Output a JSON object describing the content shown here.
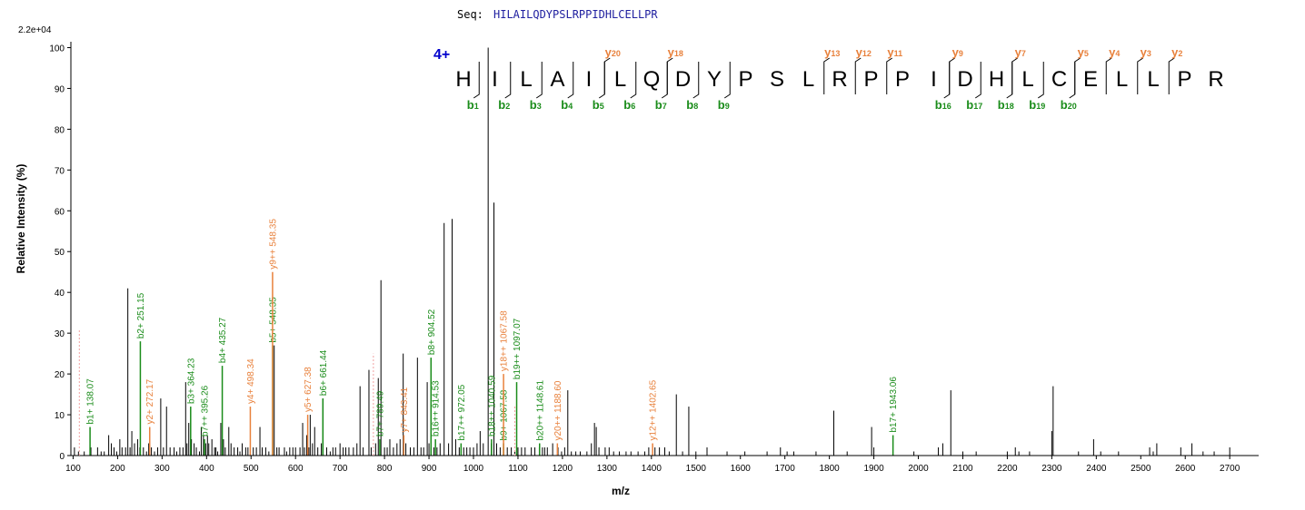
{
  "sequence_label": "Seq:",
  "sequence": "HILAILQDYPSLRPPIDHLCELLPR",
  "charge": "4+",
  "scale": "2.2e+04",
  "chart_data": {
    "type": "bar",
    "xlabel": "m/z",
    "ylabel": "Relative   Intensity (%)",
    "xlim": [
      95,
      2765
    ],
    "ylim": [
      0,
      101
    ],
    "xticks": [
      100,
      200,
      300,
      400,
      500,
      600,
      700,
      800,
      900,
      1000,
      1100,
      1200,
      1300,
      1400,
      1500,
      1600,
      1700,
      1800,
      1900,
      2000,
      2100,
      2200,
      2300,
      2400,
      2500,
      2600,
      2700
    ],
    "yticks": [
      0,
      10,
      20,
      30,
      40,
      50,
      60,
      70,
      80,
      90,
      100
    ],
    "colors": {
      "b": "#1a8c1a",
      "y": "#e8813c",
      "other": "#000000",
      "charge": "#0000cc"
    },
    "peaks": [
      [
        103,
        2
      ],
      [
        112,
        1
      ],
      [
        125,
        1
      ],
      [
        140,
        2
      ],
      [
        155,
        2
      ],
      [
        163,
        1
      ],
      [
        170,
        1
      ],
      [
        180,
        5
      ],
      [
        186,
        3
      ],
      [
        192,
        2
      ],
      [
        198,
        1
      ],
      [
        205,
        4
      ],
      [
        210,
        2
      ],
      [
        218,
        2
      ],
      [
        223,
        41
      ],
      [
        228,
        2
      ],
      [
        232,
        6
      ],
      [
        238,
        3
      ],
      [
        245,
        4
      ],
      [
        250,
        2
      ],
      [
        258,
        2
      ],
      [
        265,
        1
      ],
      [
        270,
        3
      ],
      [
        276,
        2
      ],
      [
        283,
        1
      ],
      [
        290,
        2
      ],
      [
        297,
        14
      ],
      [
        303,
        2
      ],
      [
        310,
        12
      ],
      [
        318,
        2
      ],
      [
        327,
        2
      ],
      [
        333,
        1
      ],
      [
        340,
        2
      ],
      [
        347,
        2
      ],
      [
        353,
        18
      ],
      [
        356,
        3
      ],
      [
        360,
        8
      ],
      [
        366,
        4
      ],
      [
        372,
        3
      ],
      [
        377,
        2
      ],
      [
        384,
        1
      ],
      [
        388,
        7
      ],
      [
        393,
        5
      ],
      [
        398,
        3
      ],
      [
        402,
        5
      ],
      [
        405,
        3
      ],
      [
        412,
        4
      ],
      [
        418,
        2
      ],
      [
        421,
        2
      ],
      [
        425,
        1
      ],
      [
        432,
        8
      ],
      [
        438,
        4
      ],
      [
        442,
        2
      ],
      [
        450,
        7
      ],
      [
        455,
        3
      ],
      [
        462,
        2
      ],
      [
        470,
        2
      ],
      [
        475,
        1
      ],
      [
        480,
        3
      ],
      [
        488,
        2
      ],
      [
        493,
        2
      ],
      [
        505,
        2
      ],
      [
        512,
        2
      ],
      [
        520,
        7
      ],
      [
        525,
        2
      ],
      [
        533,
        2
      ],
      [
        540,
        1
      ],
      [
        552,
        27
      ],
      [
        558,
        2
      ],
      [
        563,
        2
      ],
      [
        575,
        2
      ],
      [
        580,
        1
      ],
      [
        587,
        2
      ],
      [
        594,
        2
      ],
      [
        600,
        2
      ],
      [
        610,
        2
      ],
      [
        616,
        8
      ],
      [
        620,
        2
      ],
      [
        625,
        5
      ],
      [
        630,
        2
      ],
      [
        633,
        10
      ],
      [
        638,
        3
      ],
      [
        643,
        7
      ],
      [
        650,
        2
      ],
      [
        658,
        3
      ],
      [
        662,
        14
      ],
      [
        670,
        2
      ],
      [
        678,
        1
      ],
      [
        684,
        2
      ],
      [
        690,
        2
      ],
      [
        700,
        3
      ],
      [
        707,
        2
      ],
      [
        713,
        2
      ],
      [
        720,
        2
      ],
      [
        730,
        2
      ],
      [
        738,
        3
      ],
      [
        745,
        17
      ],
      [
        752,
        2
      ],
      [
        765,
        21
      ],
      [
        770,
        2
      ],
      [
        780,
        3
      ],
      [
        786,
        19
      ],
      [
        792,
        43
      ],
      [
        800,
        2
      ],
      [
        806,
        2
      ],
      [
        812,
        4
      ],
      [
        820,
        2
      ],
      [
        828,
        3
      ],
      [
        835,
        4
      ],
      [
        842,
        25
      ],
      [
        848,
        3
      ],
      [
        858,
        2
      ],
      [
        866,
        2
      ],
      [
        874,
        24
      ],
      [
        882,
        2
      ],
      [
        888,
        2
      ],
      [
        896,
        18
      ],
      [
        900,
        3
      ],
      [
        904,
        2
      ],
      [
        911,
        2
      ],
      [
        918,
        2
      ],
      [
        925,
        3
      ],
      [
        934,
        57
      ],
      [
        944,
        3
      ],
      [
        952,
        58
      ],
      [
        960,
        4
      ],
      [
        968,
        2
      ],
      [
        978,
        2
      ],
      [
        985,
        2
      ],
      [
        992,
        2
      ],
      [
        1000,
        2
      ],
      [
        1008,
        3
      ],
      [
        1015,
        6
      ],
      [
        1022,
        3
      ],
      [
        1033,
        100
      ],
      [
        1040,
        3
      ],
      [
        1046,
        62
      ],
      [
        1052,
        3
      ],
      [
        1060,
        2
      ],
      [
        1068,
        2
      ],
      [
        1076,
        2
      ],
      [
        1085,
        2
      ],
      [
        1093,
        1
      ],
      [
        1100,
        2
      ],
      [
        1108,
        2
      ],
      [
        1116,
        2
      ],
      [
        1130,
        2
      ],
      [
        1138,
        2
      ],
      [
        1148,
        2
      ],
      [
        1155,
        2
      ],
      [
        1160,
        2
      ],
      [
        1166,
        2
      ],
      [
        1178,
        3
      ],
      [
        1190,
        2
      ],
      [
        1198,
        1
      ],
      [
        1205,
        2
      ],
      [
        1212,
        16
      ],
      [
        1220,
        1
      ],
      [
        1230,
        1
      ],
      [
        1240,
        1
      ],
      [
        1255,
        1
      ],
      [
        1265,
        3
      ],
      [
        1272,
        8
      ],
      [
        1276,
        7
      ],
      [
        1282,
        2
      ],
      [
        1296,
        2
      ],
      [
        1305,
        2
      ],
      [
        1315,
        1
      ],
      [
        1328,
        1
      ],
      [
        1343,
        1
      ],
      [
        1354,
        1
      ],
      [
        1370,
        1
      ],
      [
        1385,
        1
      ],
      [
        1394,
        2
      ],
      [
        1408,
        2
      ],
      [
        1418,
        2
      ],
      [
        1430,
        2
      ],
      [
        1440,
        1
      ],
      [
        1456,
        15
      ],
      [
        1470,
        1
      ],
      [
        1484,
        12
      ],
      [
        1500,
        1
      ],
      [
        1525,
        2
      ],
      [
        1570,
        1
      ],
      [
        1610,
        1
      ],
      [
        1660,
        1
      ],
      [
        1690,
        2
      ],
      [
        1705,
        1
      ],
      [
        1720,
        1
      ],
      [
        1770,
        1
      ],
      [
        1810,
        11
      ],
      [
        1840,
        1
      ],
      [
        1895,
        7
      ],
      [
        1900,
        2
      ],
      [
        1990,
        1
      ],
      [
        2045,
        2
      ],
      [
        2055,
        3
      ],
      [
        2073,
        16
      ],
      [
        2100,
        1
      ],
      [
        2130,
        1
      ],
      [
        2200,
        1
      ],
      [
        2218,
        2
      ],
      [
        2226,
        1
      ],
      [
        2250,
        1
      ],
      [
        2300,
        6
      ],
      [
        2303,
        17
      ],
      [
        2360,
        1
      ],
      [
        2394,
        4
      ],
      [
        2410,
        1
      ],
      [
        2450,
        1
      ],
      [
        2520,
        2
      ],
      [
        2528,
        1
      ],
      [
        2536,
        3
      ],
      [
        2590,
        2
      ],
      [
        2615,
        3
      ],
      [
        2640,
        1
      ],
      [
        2665,
        1
      ],
      [
        2700,
        2
      ]
    ],
    "annotations": [
      {
        "mz": 138.07,
        "h": 7,
        "label": "b1+ 138.07",
        "ion": "b"
      },
      {
        "mz": 251.15,
        "h": 28,
        "label": "b2+ 251.15",
        "ion": "b"
      },
      {
        "mz": 272.17,
        "h": 7,
        "label": "y2+ 272.17",
        "ion": "y"
      },
      {
        "mz": 364.23,
        "h": 12,
        "label": "b3+ 364.23",
        "ion": "b"
      },
      {
        "mz": 395.26,
        "h": 4,
        "label": "b7++ 395.26",
        "ion": "b"
      },
      {
        "mz": 435.27,
        "h": 22,
        "label": "b4+ 435.27",
        "ion": "b"
      },
      {
        "mz": 498.34,
        "h": 12,
        "label": "y4+ 498.34",
        "ion": "y"
      },
      {
        "mz": 548.35,
        "h": 27,
        "label": "b5+ 548.35",
        "ion": "b"
      },
      {
        "mz": 548.35,
        "h": 45,
        "label": "y9++ 548.35",
        "ion": "y"
      },
      {
        "mz": 627.38,
        "h": 10,
        "label": "y5+ 627.38",
        "ion": "y"
      },
      {
        "mz": 661.44,
        "h": 14,
        "label": "b6+ 661.44",
        "ion": "b"
      },
      {
        "mz": 789.49,
        "h": 4,
        "label": "b7+ 789.49",
        "ion": "b"
      },
      {
        "mz": 843.41,
        "h": 5,
        "label": "y7+ 843.41",
        "ion": "y"
      },
      {
        "mz": 904.52,
        "h": 24,
        "label": "b8+ 904.52",
        "ion": "b"
      },
      {
        "mz": 914.53,
        "h": 4,
        "label": "b16++ 914.53",
        "ion": "b"
      },
      {
        "mz": 972.05,
        "h": 3,
        "label": "b17++ 972.05",
        "ion": "b"
      },
      {
        "mz": 1040.59,
        "h": 4,
        "label": "b18++ 1040.59",
        "ion": "b"
      },
      {
        "mz": 1067.58,
        "h": 3,
        "label": "b9+ 1067.58",
        "ion": "b"
      },
      {
        "mz": 1067.58,
        "h": 20,
        "label": "y18++ 1067.58",
        "ion": "y"
      },
      {
        "mz": 1097.07,
        "h": 18,
        "label": "b19++ 1097.07",
        "ion": "b"
      },
      {
        "mz": 1148.61,
        "h": 3,
        "label": "b20++ 1148.61",
        "ion": "b"
      },
      {
        "mz": 1188.6,
        "h": 3,
        "label": "y20++ 1188.60",
        "ion": "y"
      },
      {
        "mz": 1402.65,
        "h": 3,
        "label": "y12++ 1402.65",
        "ion": "y"
      },
      {
        "mz": 1943.06,
        "h": 5,
        "label": "b17+ 1943.06",
        "ion": "b"
      }
    ],
    "residues": [
      "H",
      "I",
      "L",
      "A",
      "I",
      "L",
      "Q",
      "D",
      "Y",
      "P",
      "S",
      "L",
      "R",
      "P",
      "P",
      "I",
      "D",
      "H",
      "L",
      "C",
      "E",
      "L",
      "L",
      "P",
      "R"
    ],
    "b_ions": [
      {
        "pos": 1,
        "label": "b",
        "num": "1"
      },
      {
        "pos": 2,
        "label": "b",
        "num": "2"
      },
      {
        "pos": 3,
        "label": "b",
        "num": "3"
      },
      {
        "pos": 4,
        "label": "b",
        "num": "4"
      },
      {
        "pos": 5,
        "label": "b",
        "num": "5"
      },
      {
        "pos": 6,
        "label": "b",
        "num": "6"
      },
      {
        "pos": 7,
        "label": "b",
        "num": "7"
      },
      {
        "pos": 8,
        "label": "b",
        "num": "8"
      },
      {
        "pos": 9,
        "label": "b",
        "num": "9"
      },
      {
        "pos": 16,
        "label": "b",
        "num": "16"
      },
      {
        "pos": 17,
        "label": "b",
        "num": "17"
      },
      {
        "pos": 18,
        "label": "b",
        "num": "18"
      },
      {
        "pos": 19,
        "label": "b",
        "num": "19"
      },
      {
        "pos": 20,
        "label": "b",
        "num": "20"
      }
    ],
    "y_ions": [
      {
        "pos": 5,
        "label": "y",
        "num": "20"
      },
      {
        "pos": 7,
        "label": "y",
        "num": "18"
      },
      {
        "pos": 12,
        "label": "y",
        "num": "13"
      },
      {
        "pos": 13,
        "label": "y",
        "num": "12"
      },
      {
        "pos": 14,
        "label": "y",
        "num": "11"
      },
      {
        "pos": 16,
        "label": "y",
        "num": "9"
      },
      {
        "pos": 18,
        "label": "y",
        "num": "7"
      },
      {
        "pos": 20,
        "label": "y",
        "num": "5"
      },
      {
        "pos": 21,
        "label": "y",
        "num": "4"
      },
      {
        "pos": 22,
        "label": "y",
        "num": "3"
      },
      {
        "pos": 23,
        "label": "y",
        "num": "2"
      }
    ]
  }
}
